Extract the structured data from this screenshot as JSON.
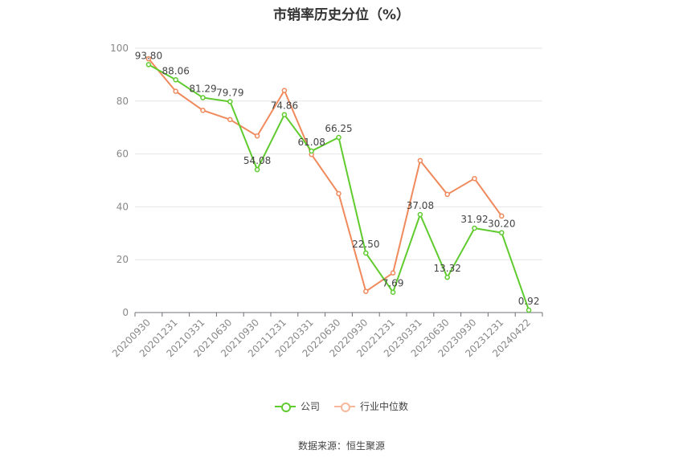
{
  "chart_data": {
    "type": "line",
    "title": "市销率历史分位（%）",
    "categories": [
      "20200930",
      "20201231",
      "20210331",
      "20210630",
      "20210930",
      "20211231",
      "20220331",
      "20220630",
      "20220930",
      "20221231",
      "20230331",
      "20230630",
      "20230930",
      "20231231",
      "20240422"
    ],
    "ylim": [
      0,
      100
    ],
    "yticks": [
      0,
      20,
      40,
      60,
      80,
      100
    ],
    "grid": true,
    "legend_position": "bottom",
    "series": [
      {
        "name": "公司",
        "color": "#5fcb2e",
        "values": [
          93.8,
          88.06,
          81.29,
          79.79,
          54.08,
          74.86,
          61.08,
          66.25,
          22.5,
          7.69,
          37.08,
          13.32,
          31.92,
          30.2,
          0.92
        ],
        "labels": [
          "93.80",
          "88.06",
          "81.29",
          "79.79",
          "54.08",
          "74.86",
          "61.08",
          "66.25",
          "22.50",
          "7.69",
          "37.08",
          "13.32",
          "31.92",
          "30.20",
          "0.92"
        ]
      },
      {
        "name": "行业中位数",
        "color": "#f0895c",
        "values": [
          96.0,
          83.7,
          76.5,
          73.0,
          66.8,
          84.0,
          59.8,
          45.0,
          8.0,
          15.0,
          57.5,
          44.7,
          50.7,
          36.5,
          null
        ]
      }
    ]
  },
  "source_text": "数据来源：恒生聚源"
}
